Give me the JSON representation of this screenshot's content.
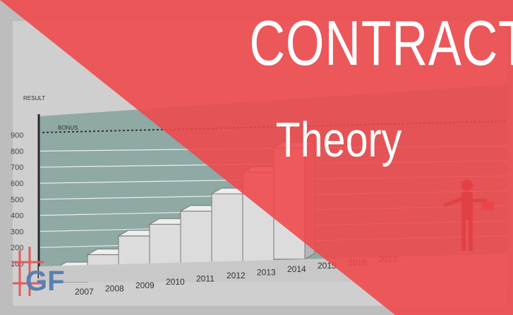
{
  "title": "CONTRACT",
  "subtitle": "Theory",
  "chart": {
    "y_axis_label": "RESULT",
    "bonus_label": "BONUS",
    "y_ticks": [
      "100",
      "200",
      "300",
      "400",
      "500",
      "600",
      "700",
      "800",
      "900"
    ],
    "years": [
      "2007",
      "2008",
      "2009",
      "2010",
      "2011",
      "2012",
      "2013",
      "2014",
      "2015",
      "2016",
      "2017"
    ]
  },
  "logo_text": "GF",
  "colors": {
    "banner": "#f0474a",
    "chart_bg": "#8fa9a5",
    "step": "#dcdcdc"
  }
}
